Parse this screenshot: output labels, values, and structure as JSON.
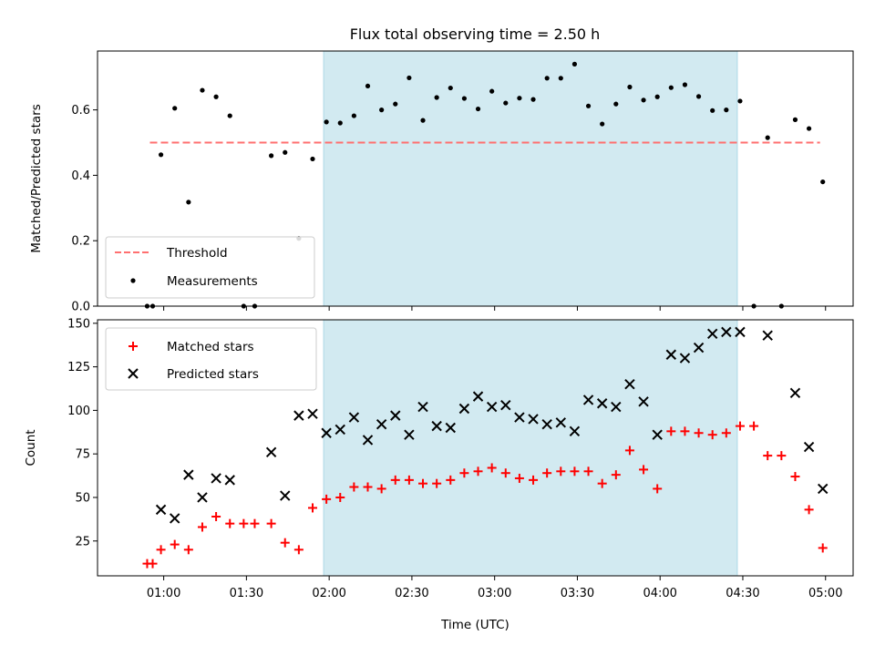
{
  "chart_data": [
    {
      "type": "scatter",
      "title": "Flux total observing time = 2.50 h",
      "xlabel": "",
      "ylabel": "Matched/Predicted stars",
      "ylim": [
        0,
        0.78
      ],
      "yticks": [
        "0.0",
        "0.2",
        "0.4",
        "0.6"
      ],
      "shaded_span": [
        "01:58",
        "04:28"
      ],
      "threshold": {
        "name": "Threshold",
        "value": 0.5,
        "x_range": [
          "00:55",
          "04:58"
        ],
        "color": "#ff7070"
      },
      "series": [
        {
          "name": "Measurements",
          "color": "#000000",
          "marker": "dot",
          "points": [
            [
              "00:54",
              0.0
            ],
            [
              "00:56",
              0.0
            ],
            [
              "00:59",
              0.463
            ],
            [
              "01:04",
              0.605
            ],
            [
              "01:09",
              0.318
            ],
            [
              "01:14",
              0.66
            ],
            [
              "01:19",
              0.64
            ],
            [
              "01:24",
              0.582
            ],
            [
              "01:29",
              0.0
            ],
            [
              "01:33",
              0.0
            ],
            [
              "01:39",
              0.46
            ],
            [
              "01:44",
              0.47
            ],
            [
              "01:49",
              0.207
            ],
            [
              "01:54",
              0.45
            ],
            [
              "01:59",
              0.563
            ],
            [
              "02:04",
              0.56
            ],
            [
              "02:09",
              0.582
            ],
            [
              "02:14",
              0.673
            ],
            [
              "02:19",
              0.6
            ],
            [
              "02:24",
              0.618
            ],
            [
              "02:29",
              0.698
            ],
            [
              "02:34",
              0.568
            ],
            [
              "02:39",
              0.638
            ],
            [
              "02:44",
              0.667
            ],
            [
              "02:49",
              0.635
            ],
            [
              "02:54",
              0.603
            ],
            [
              "02:59",
              0.657
            ],
            [
              "03:04",
              0.621
            ],
            [
              "03:09",
              0.636
            ],
            [
              "03:14",
              0.632
            ],
            [
              "03:19",
              0.697
            ],
            [
              "03:24",
              0.697
            ],
            [
              "03:29",
              0.74
            ],
            [
              "03:34",
              0.612
            ],
            [
              "03:39",
              0.557
            ],
            [
              "03:44",
              0.618
            ],
            [
              "03:49",
              0.67
            ],
            [
              "03:54",
              0.63
            ],
            [
              "03:59",
              0.64
            ],
            [
              "04:04",
              0.668
            ],
            [
              "04:09",
              0.677
            ],
            [
              "04:14",
              0.641
            ],
            [
              "04:19",
              0.598
            ],
            [
              "04:24",
              0.6
            ],
            [
              "04:29",
              0.627
            ],
            [
              "04:34",
              0.0
            ],
            [
              "04:39",
              0.515
            ],
            [
              "04:44",
              0.0
            ],
            [
              "04:49",
              0.57
            ],
            [
              "04:54",
              0.543
            ],
            [
              "04:59",
              0.38
            ]
          ]
        }
      ],
      "legend": "lower-left",
      "grid": false
    },
    {
      "type": "scatter",
      "xlabel": "Time (UTC)",
      "ylabel": "Count",
      "ylim": [
        5,
        152
      ],
      "yticks": [
        "25",
        "50",
        "75",
        "100",
        "125",
        "150"
      ],
      "xticks": [
        "01:00",
        "01:30",
        "02:00",
        "02:30",
        "03:00",
        "03:30",
        "04:00",
        "04:30",
        "05:00"
      ],
      "xlim": [
        "00:36",
        "05:10"
      ],
      "shaded_span": [
        "01:58",
        "04:28"
      ],
      "series": [
        {
          "name": "Matched stars",
          "color": "#ff0000",
          "marker": "plus",
          "points": [
            [
              "00:54",
              12
            ],
            [
              "00:56",
              12
            ],
            [
              "00:59",
              20
            ],
            [
              "01:04",
              23
            ],
            [
              "01:09",
              20
            ],
            [
              "01:14",
              33
            ],
            [
              "01:19",
              39
            ],
            [
              "01:24",
              35
            ],
            [
              "01:29",
              35
            ],
            [
              "01:33",
              35
            ],
            [
              "01:39",
              35
            ],
            [
              "01:44",
              24
            ],
            [
              "01:49",
              20
            ],
            [
              "01:54",
              44
            ],
            [
              "01:59",
              49
            ],
            [
              "02:04",
              50
            ],
            [
              "02:09",
              56
            ],
            [
              "02:14",
              56
            ],
            [
              "02:19",
              55
            ],
            [
              "02:24",
              60
            ],
            [
              "02:29",
              60
            ],
            [
              "02:34",
              58
            ],
            [
              "02:39",
              58
            ],
            [
              "02:44",
              60
            ],
            [
              "02:49",
              64
            ],
            [
              "02:54",
              65
            ],
            [
              "02:59",
              67
            ],
            [
              "03:04",
              64
            ],
            [
              "03:09",
              61
            ],
            [
              "03:14",
              60
            ],
            [
              "03:19",
              64
            ],
            [
              "03:24",
              65
            ],
            [
              "03:29",
              65
            ],
            [
              "03:34",
              65
            ],
            [
              "03:39",
              58
            ],
            [
              "03:44",
              63
            ],
            [
              "03:49",
              77
            ],
            [
              "03:54",
              66
            ],
            [
              "03:59",
              55
            ],
            [
              "04:04",
              88
            ],
            [
              "04:09",
              88
            ],
            [
              "04:14",
              87
            ],
            [
              "04:19",
              86
            ],
            [
              "04:24",
              87
            ],
            [
              "04:29",
              91
            ],
            [
              "04:34",
              91
            ],
            [
              "04:39",
              74
            ],
            [
              "04:44",
              74
            ],
            [
              "04:49",
              62
            ],
            [
              "04:54",
              43
            ],
            [
              "04:59",
              21
            ]
          ]
        },
        {
          "name": "Predicted stars",
          "color": "#000000",
          "marker": "x",
          "points": [
            [
              "00:59",
              43
            ],
            [
              "01:04",
              38
            ],
            [
              "01:09",
              63
            ],
            [
              "01:14",
              50
            ],
            [
              "01:19",
              61
            ],
            [
              "01:24",
              60
            ],
            [
              "01:39",
              76
            ],
            [
              "01:44",
              51
            ],
            [
              "01:49",
              97
            ],
            [
              "01:54",
              98
            ],
            [
              "01:59",
              87
            ],
            [
              "02:04",
              89
            ],
            [
              "02:09",
              96
            ],
            [
              "02:14",
              83
            ],
            [
              "02:19",
              92
            ],
            [
              "02:24",
              97
            ],
            [
              "02:29",
              86
            ],
            [
              "02:34",
              102
            ],
            [
              "02:39",
              91
            ],
            [
              "02:44",
              90
            ],
            [
              "02:49",
              101
            ],
            [
              "02:54",
              108
            ],
            [
              "02:59",
              102
            ],
            [
              "03:04",
              103
            ],
            [
              "03:09",
              96
            ],
            [
              "03:14",
              95
            ],
            [
              "03:19",
              92
            ],
            [
              "03:24",
              93
            ],
            [
              "03:29",
              88
            ],
            [
              "03:34",
              106
            ],
            [
              "03:39",
              104
            ],
            [
              "03:44",
              102
            ],
            [
              "03:49",
              115
            ],
            [
              "03:54",
              105
            ],
            [
              "03:59",
              86
            ],
            [
              "04:04",
              132
            ],
            [
              "04:09",
              130
            ],
            [
              "04:14",
              136
            ],
            [
              "04:19",
              144
            ],
            [
              "04:24",
              145
            ],
            [
              "04:29",
              145
            ],
            [
              "04:39",
              143
            ],
            [
              "04:49",
              110
            ],
            [
              "04:54",
              79
            ],
            [
              "04:59",
              55
            ]
          ]
        }
      ],
      "legend": "upper-left",
      "grid": false
    }
  ],
  "colors": {
    "shade": "#add8e6",
    "threshold": "#ff7070"
  }
}
